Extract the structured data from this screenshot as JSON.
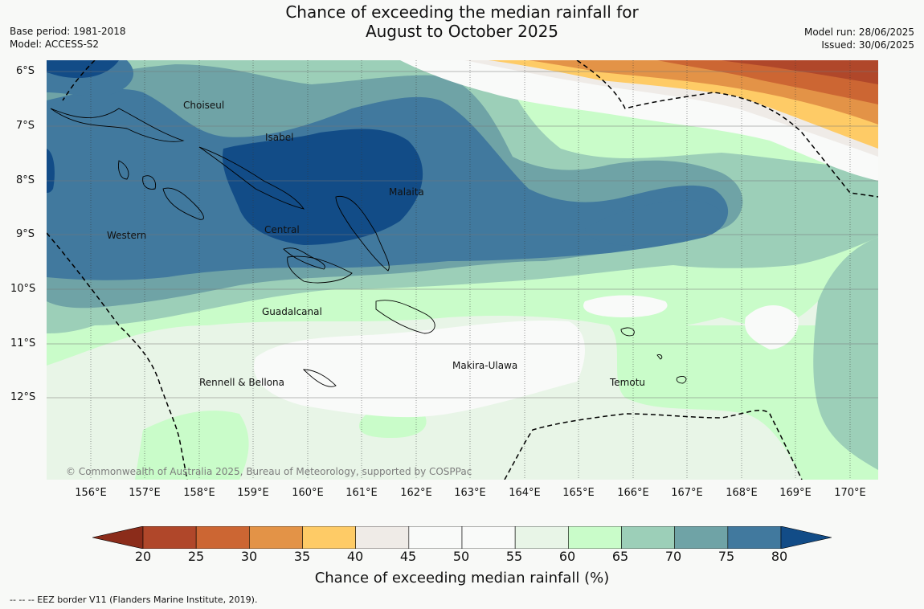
{
  "header": {
    "title_line1": "Chance of exceeding the median rainfall for",
    "title_line2": "August to October 2025",
    "base_period": "Base period: 1981-2018",
    "model": "Model: ACCESS-S2",
    "model_run": "Model run: 28/06/2025",
    "issued": "Issued: 30/06/2025"
  },
  "map": {
    "lat_labels": [
      "6°S",
      "7°S",
      "8°S",
      "9°S",
      "10°S",
      "11°S",
      "12°S"
    ],
    "lon_labels": [
      "156°E",
      "157°E",
      "158°E",
      "159°E",
      "160°E",
      "161°E",
      "162°E",
      "163°E",
      "164°E",
      "165°E",
      "166°E",
      "167°E",
      "168°E",
      "169°E",
      "170°E"
    ],
    "regions": {
      "choiseul": "Choiseul",
      "isabel": "Isabel",
      "malaita": "Malaita",
      "western": "Western",
      "central": "Central",
      "guadalcanal": "Guadalcanal",
      "makira_ulawa": "Makira-Ulawa",
      "temotu": "Temotu",
      "rennell_bellona": "Rennell & Bellona"
    },
    "copyright": "© Commonwealth of Australia 2025, Bureau of Meteorology, supported by COSPPac"
  },
  "colorbar": {
    "ticks": [
      "20",
      "25",
      "30",
      "35",
      "40",
      "45",
      "50",
      "55",
      "60",
      "65",
      "70",
      "75",
      "80"
    ],
    "colors": [
      "#8b2c1a",
      "#b0472a",
      "#cc6633",
      "#e39347",
      "#fecb66",
      "#efebe7",
      "#f9faf9",
      "#f9faf9",
      "#e8f5e7",
      "#c9fcc9",
      "#9ccfb8",
      "#6fa3a6",
      "#41799e",
      "#124c87"
    ],
    "title": "Chance of exceeding median rainfall (%)"
  },
  "footer": {
    "eez_note": "--  --  -- EEZ border V11 (Flanders Marine Institute, 2019)."
  }
}
